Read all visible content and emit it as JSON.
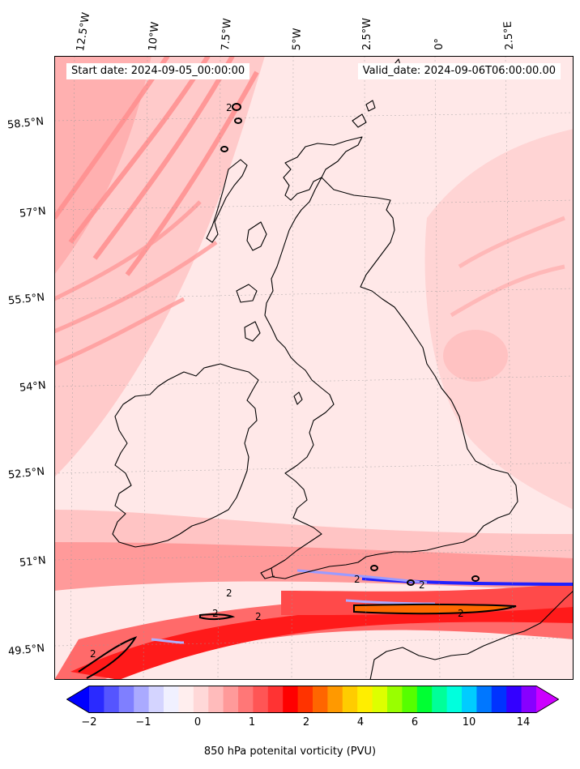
{
  "map": {
    "start_date": "Start date: 2024-09-05_00:00:00",
    "valid_date": "Valid_date: 2024-09-06T06:00:00.00",
    "lon_labels": [
      "12.5°W",
      "10°W",
      "7.5°W",
      "5°W",
      "2.5°W",
      "0°",
      "2.5°E"
    ],
    "lat_labels": [
      "58.5°N",
      "57°N",
      "55.5°N",
      "54°N",
      "52.5°N",
      "51°N",
      "49.5°N"
    ],
    "contour_labels": [
      "2",
      "2",
      "2",
      "2",
      "2",
      "2",
      "2",
      "2"
    ],
    "region": "British Isles",
    "field": "850 hPa potential vorticity"
  },
  "colorbar": {
    "title": "850 hPa potenital vorticity (PVU)",
    "ticks": [
      "−2",
      "−1",
      "0",
      "1",
      "2",
      "4",
      "6",
      "10",
      "14"
    ],
    "colors": [
      "#0000ff",
      "#2a2aff",
      "#5555ff",
      "#7f7fff",
      "#aaaaff",
      "#d4d4ff",
      "#f0f0ff",
      "#ffeeee",
      "#ffd8d8",
      "#ffbbbb",
      "#ff9a9a",
      "#ff7777",
      "#ff5555",
      "#ff3333",
      "#ff0000",
      "#ff3300",
      "#ff6600",
      "#ff9900",
      "#ffcc00",
      "#ffee00",
      "#ddff00",
      "#99ff00",
      "#55ff00",
      "#00ff33",
      "#00ff99",
      "#00ffdd",
      "#00ccff",
      "#0077ff",
      "#0033ff",
      "#3300ff",
      "#8800ff",
      "#cc00ff"
    ]
  }
}
